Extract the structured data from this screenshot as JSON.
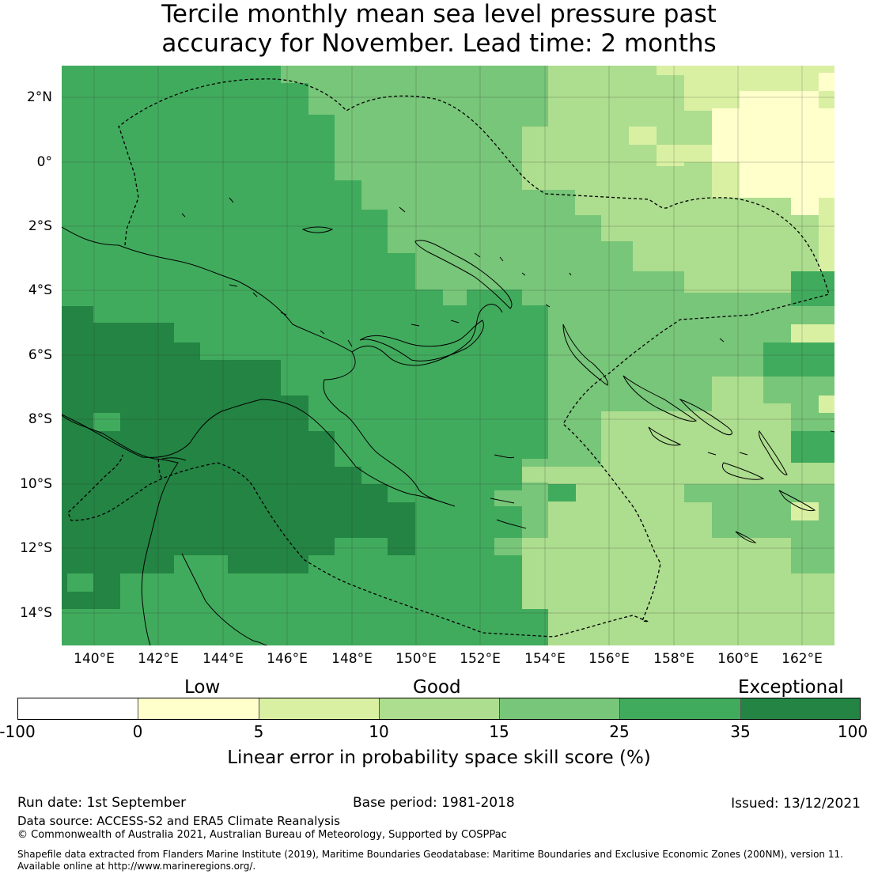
{
  "title": {
    "line1": "Tercile monthly mean sea level pressure past",
    "line2": "accuracy for November. Lead time: 2 months"
  },
  "map": {
    "lat_ticks": [
      "2°N",
      "0°",
      "2°S",
      "4°S",
      "6°S",
      "8°S",
      "10°S",
      "12°S",
      "14°S"
    ],
    "lon_ticks": [
      "140°E",
      "142°E",
      "144°E",
      "146°E",
      "148°E",
      "150°E",
      "152°E",
      "154°E",
      "156°E",
      "158°E",
      "160°E",
      "162°E"
    ],
    "extent": {
      "lon_min": 139,
      "lon_max": 163,
      "lat_min": -15,
      "lat_max": 3
    },
    "grid_lines": true
  },
  "colorbar": {
    "categories": [
      "Low",
      "Good",
      "Exceptional"
    ],
    "ticks": [
      "-100",
      "0",
      "5",
      "10",
      "15",
      "25",
      "35",
      "100"
    ],
    "colors": [
      "#ffffff",
      "#ffffcc",
      "#d9f0a3",
      "#addd8e",
      "#78c679",
      "#41ab5d",
      "#238443"
    ],
    "label": "Linear error in probability space skill score (%)"
  },
  "footer": {
    "run_date": "Run date: 1st September",
    "base_period": "Base period: 1981-2018",
    "issued": "Issued: 13/12/2021",
    "data_source": "Data source: ACCESS-S2 and ERA5 Climate Reanalysis",
    "copyright": "© Commonwealth of Australia 2021, Australian Bureau of Meteorology, Supported by COSPPac",
    "shapefile_line1": "Shapefile data extracted from Flanders Marine Institute (2019), Maritime Boundaries Geodatabase: Maritime Boundaries and Exclusive Economic Zones (200NM), version 11.",
    "shapefile_line2": "Available online at http://www.marineregions.org/."
  }
}
